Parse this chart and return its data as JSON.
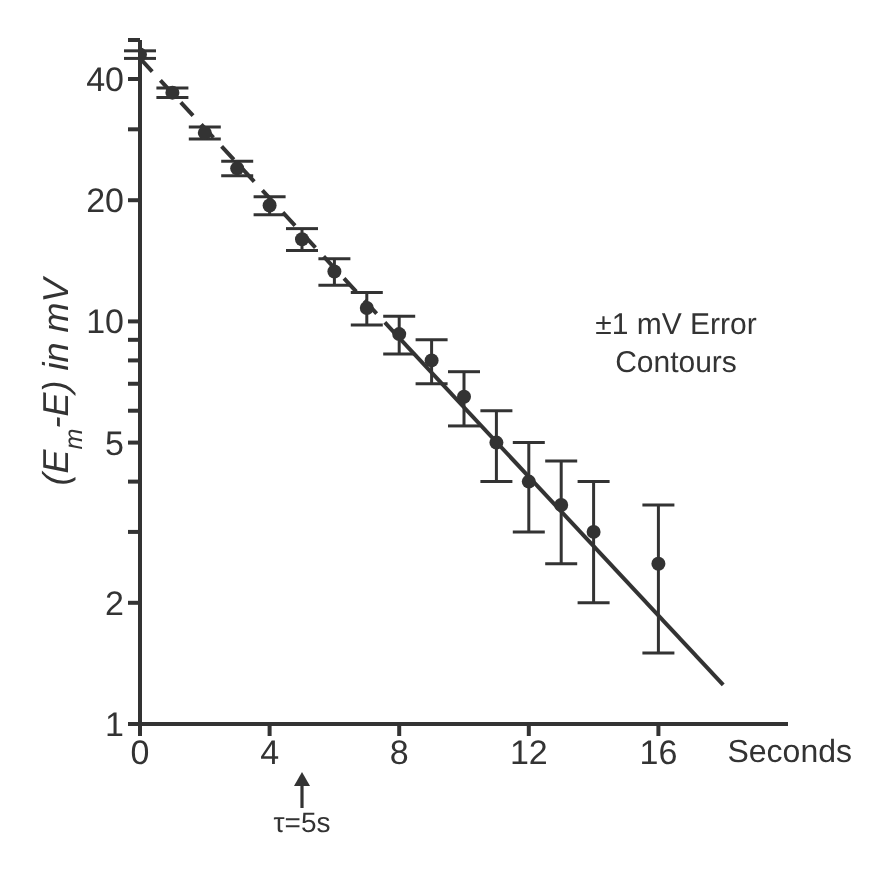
{
  "chart_data": {
    "type": "scatter",
    "xlabel": "Seconds",
    "ylabel": "(E$_{m}$-E) in mV",
    "log": "y",
    "xlim": [
      0,
      20
    ],
    "ylim": [
      1,
      50
    ],
    "xticks": [
      0,
      4,
      8,
      12,
      16
    ],
    "yticks": [
      1,
      2,
      {
        "value": 3,
        "label": null
      },
      {
        "value": 4,
        "label": null
      },
      5,
      {
        "value": 6,
        "label": null
      },
      {
        "value": 7,
        "label": null
      },
      {
        "value": 8,
        "label": null
      },
      {
        "value": 9,
        "label": null
      },
      10,
      20,
      {
        "value": 30,
        "label": null
      },
      40,
      {
        "value": 50,
        "label": null
      }
    ],
    "grid": false,
    "legend": false,
    "marker": "circle",
    "annotations": [
      "±1 mV Error Contours",
      "τ=5s"
    ],
    "series": [
      {
        "color": "#333333",
        "x": [
          0,
          1,
          2,
          3,
          4,
          5,
          6,
          7,
          8,
          9,
          10,
          11,
          12,
          13,
          14,
          16
        ],
        "values": [
          46,
          37,
          29.4,
          24,
          19.4,
          16,
          13.3,
          10.8,
          9.3,
          8,
          6.5,
          5,
          4,
          3.5,
          3,
          2.5
        ],
        "errors": [
          1,
          1,
          1,
          1,
          1,
          1,
          1,
          1,
          1,
          1,
          1,
          1,
          1,
          1,
          1,
          1
        ]
      },
      {
        "type": "line",
        "color": "#333333",
        "line_style": "dashed",
        "marker": "none",
        "x": [
          0,
          8
        ],
        "values": [
          45,
          9.1
        ]
      },
      {
        "type": "line",
        "color": "#333333",
        "line_style": "solid",
        "marker": "none",
        "x": [
          8,
          18
        ],
        "values": [
          9.1,
          1.25
        ]
      }
    ]
  }
}
